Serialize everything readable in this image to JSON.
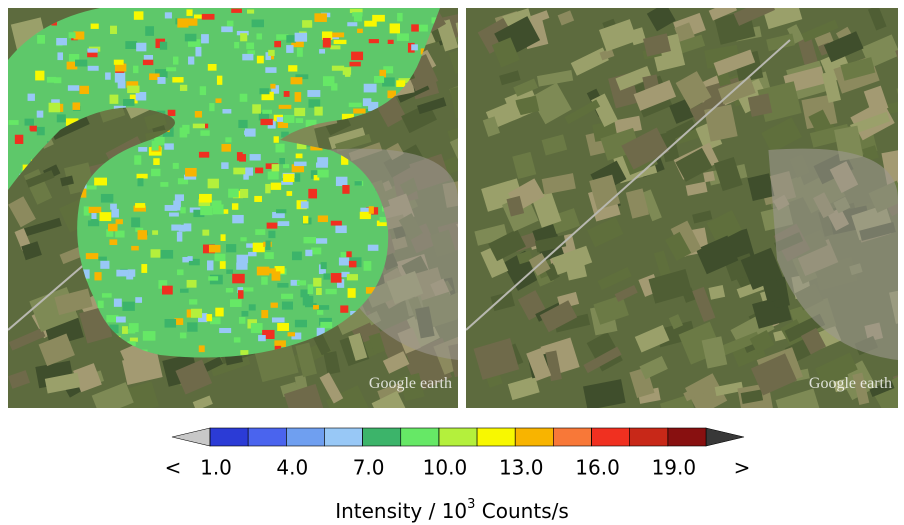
{
  "panels": [
    {
      "watermark": "Google earth"
    },
    {
      "watermark": "Google earth"
    }
  ],
  "colorbar": {
    "bounds": [
      1.0,
      2.5,
      4.0,
      5.5,
      7.0,
      8.5,
      10.0,
      11.5,
      13.0,
      14.5,
      16.0,
      17.5,
      19.0,
      20.5
    ],
    "colors": [
      "#2b3bd6",
      "#4a64ee",
      "#6f9ff0",
      "#98c8f6",
      "#3cb46a",
      "#66e866",
      "#b4f03c",
      "#f8f800",
      "#f8b400",
      "#f87838",
      "#f03020",
      "#c82818",
      "#881010"
    ],
    "under_color": "#c8c8c8",
    "over_color": "#383838",
    "under_label": "<",
    "over_label": ">",
    "ticks": [
      {
        "value": 1.0,
        "label": "1.0"
      },
      {
        "value": 4.0,
        "label": "4.0"
      },
      {
        "value": 7.0,
        "label": "7.0"
      },
      {
        "value": 10.0,
        "label": "10.0"
      },
      {
        "value": 13.0,
        "label": "13.0"
      },
      {
        "value": 16.0,
        "label": "16.0"
      },
      {
        "value": 19.0,
        "label": "19.0"
      }
    ],
    "label": {
      "prefix": "Intensity / 10",
      "sup": "3",
      "suffix": " Counts/s"
    }
  }
}
